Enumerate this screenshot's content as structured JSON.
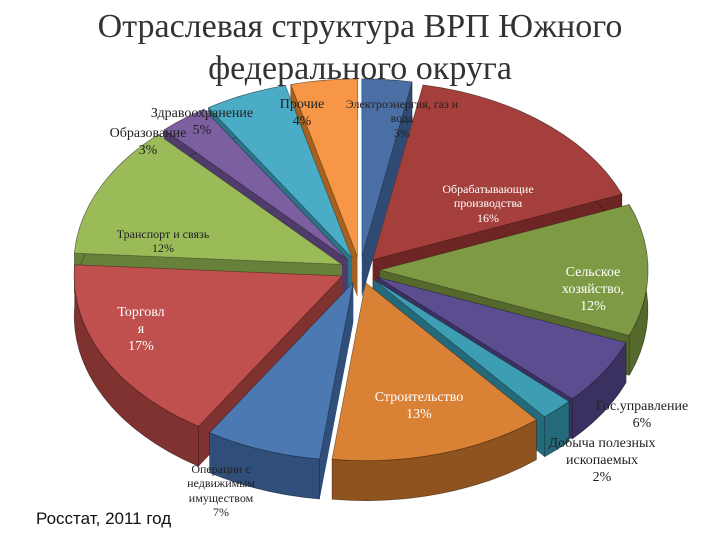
{
  "chart_data": {
    "type": "pie",
    "title_lines": [
      "Отраслевая структура ВРП Южного",
      "федерального округа"
    ],
    "categories": [
      "Электроэнергия, газ и вода",
      "Обрабатывающие производства",
      "Сельское хозяйство",
      "Гос.управление",
      "Добыча полезных ископаемых",
      "Строительство",
      "Операции с недвижимым имуществом",
      "Торговля",
      "Транспорт и связь",
      "Образование",
      "Здравоохранение",
      "Прочие"
    ],
    "values": [
      3,
      16,
      12,
      6,
      2,
      13,
      7,
      17,
      12,
      3,
      5,
      4
    ],
    "value_labels": [
      "3%",
      "16%",
      "12%",
      "6%",
      "2%",
      "13%",
      "7%",
      "17%",
      "12%",
      "3%",
      "5%",
      "4%"
    ],
    "colors": [
      "#4a6fa5",
      "#a53f3c",
      "#7f9a45",
      "#5b4d8f",
      "#3d9db3",
      "#d98236",
      "#4d79b3",
      "#c0504d",
      "#9bbb59",
      "#7b5fa0",
      "#4aacc6",
      "#f79646"
    ],
    "side_colors": [
      "#2f4a73",
      "#6e2624",
      "#55692c",
      "#3a3160",
      "#256a7a",
      "#8f531f",
      "#2f4f7a",
      "#7f3230",
      "#67803a",
      "#4f3c6b",
      "#2c7487",
      "#a8611c"
    ],
    "label_texts": {
      "electro": "Электроэнергия, газ и вода",
      "manufacturing": "Обрабатывающие производства",
      "agriculture": "Сельское хозяйство,",
      "government": "Гос.управление",
      "mining": "Добыча полезных ископаемых",
      "construction": "Строительство",
      "realestate": "Операции с недвижимым имуществом",
      "trade_a": "Торговл",
      "trade_b": "я",
      "transport": "Транспорт и связь",
      "education": "Образование",
      "health": "Здравоохранение",
      "other": "Прочие"
    }
  },
  "source_note": "Росстат, 2011 год"
}
